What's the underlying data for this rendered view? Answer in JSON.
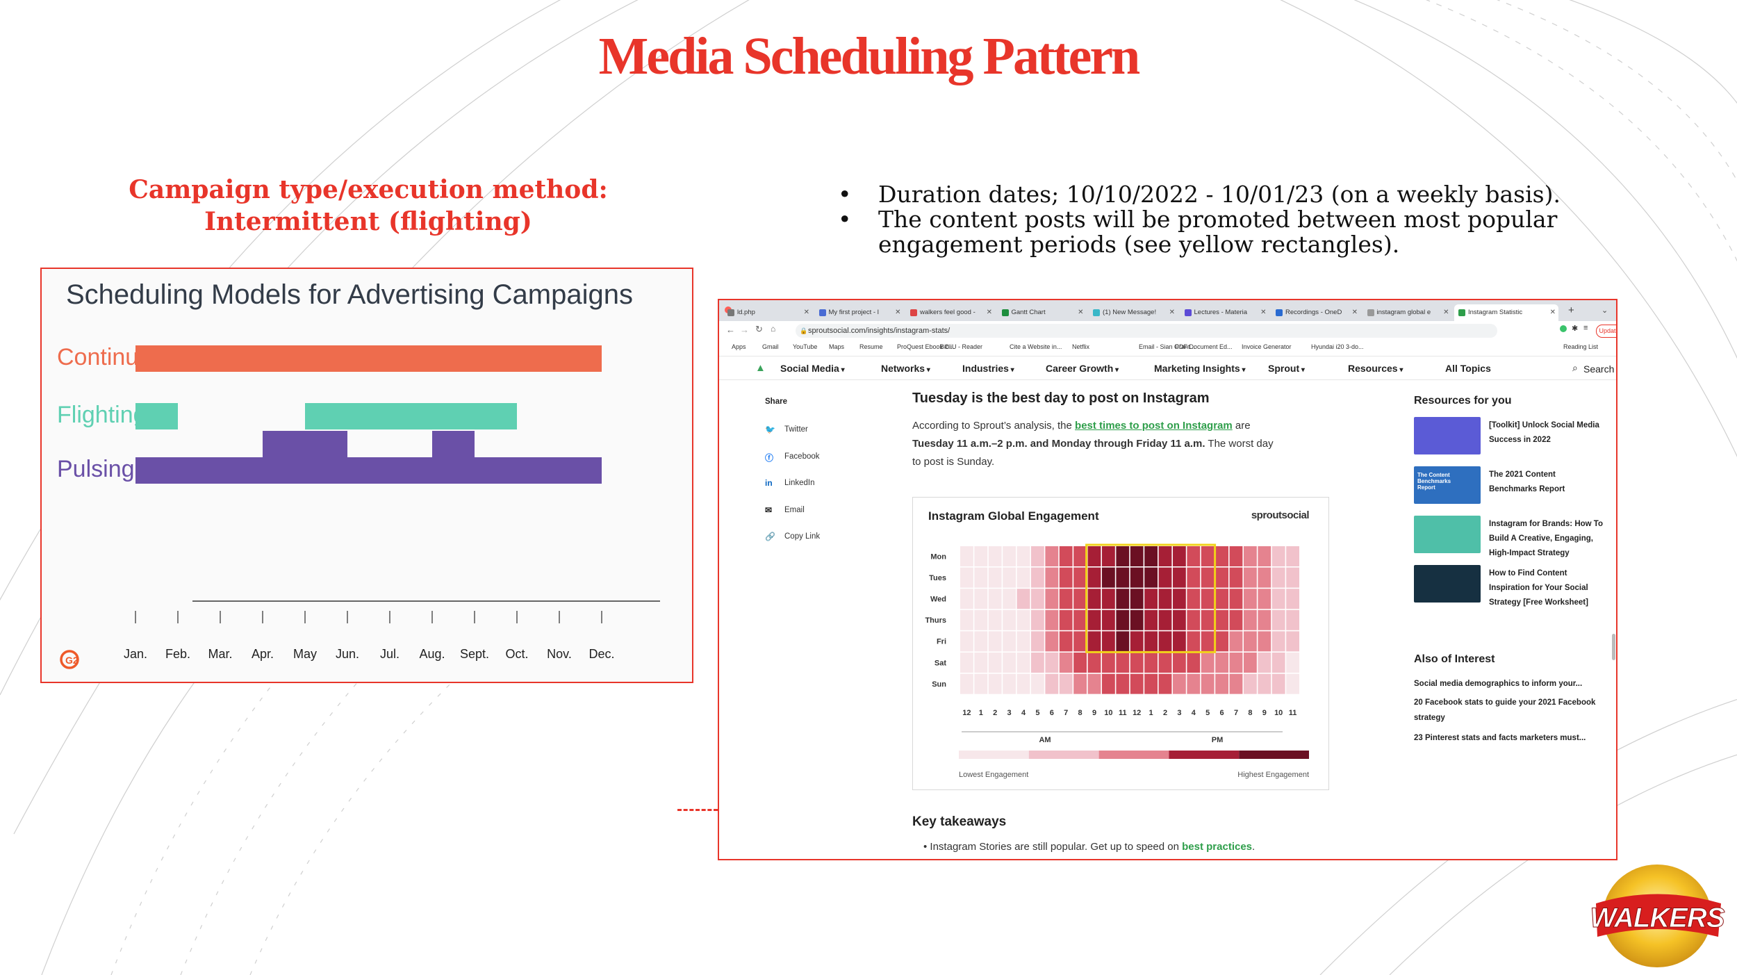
{
  "slide": {
    "title": "Media Scheduling Pattern",
    "subtitle_line1": "Campaign type/execution method:",
    "subtitle_line2": "Intermittent (flighting)",
    "bullets": [
      "Duration dates; 10/10/2022 - 10/01/23 (on a weekly basis).",
      "The content posts will be promoted between most popular engagement periods (see yellow rectangles)."
    ],
    "brand_logo_text": "WALKERS",
    "colors": {
      "title": "#e8352a",
      "border": "#e8352a"
    }
  },
  "scheduling_chart": {
    "title": "Scheduling Models for Advertising Campaigns",
    "logo_text": "G2",
    "months": [
      "Jan.",
      "Feb.",
      "Mar.",
      "Apr.",
      "May",
      "Jun.",
      "Jul.",
      "Aug.",
      "Sept.",
      "Oct.",
      "Nov.",
      "Dec."
    ],
    "rows": [
      {
        "label": "Continuity",
        "color": "#ee6c4d",
        "segments": [
          [
            0,
            11
          ]
        ],
        "pulses": []
      },
      {
        "label": "Flighting",
        "color": "#5fd0b2",
        "segments": [
          [
            0,
            1
          ],
          [
            4,
            9
          ]
        ],
        "pulses": []
      },
      {
        "label": "Pulsing",
        "color": "#6a50a7",
        "segments": [
          [
            0,
            11
          ]
        ],
        "pulses": [
          [
            3,
            5
          ],
          [
            7,
            8
          ]
        ]
      }
    ]
  },
  "browser": {
    "tabs": [
      {
        "label": "ld.php",
        "color": "#777777",
        "active": false
      },
      {
        "label": "My first project - l",
        "color": "#4a6cd4",
        "active": false
      },
      {
        "label": "walkers feel good -",
        "color": "#d44",
        "active": false
      },
      {
        "label": "Gantt Chart",
        "color": "#1e8e3e",
        "active": false
      },
      {
        "label": "(1) New Message!",
        "color": "#3ab7c8",
        "active": false
      },
      {
        "label": "Lectures - Materia",
        "color": "#5c4bd6",
        "active": false
      },
      {
        "label": "Recordings - OneD",
        "color": "#2a6bd1",
        "active": false
      },
      {
        "label": "instagram global e",
        "color": "#999999",
        "active": false
      },
      {
        "label": "Instagram Statistic",
        "color": "#2e9e4a",
        "active": true
      }
    ],
    "url": "sproutsocial.com/insights/instagram-stats/",
    "update_label": "Update",
    "bookmarks": [
      "Apps",
      "Gmail",
      "YouTube",
      "Maps",
      "Resume",
      "ProQuest Ebook C...",
      "BibliU - Reader",
      "Cite a Website in...",
      "Netflix",
      "Email - Sian Grant...",
      "PDF Document Ed...",
      "Invoice Generator",
      "Hyundai i20 3-do...",
      "Reading List"
    ],
    "nav": [
      "Social Media",
      "Networks",
      "Industries",
      "Career Growth",
      "Marketing Insights",
      "Sprout",
      "Resources",
      "All Topics"
    ],
    "search_label": "Search",
    "share_title": "Share",
    "share_items": [
      "Twitter",
      "Facebook",
      "LinkedIn",
      "Email",
      "Copy Link"
    ],
    "article": {
      "heading": "Tuesday is the best day to post on Instagram",
      "p1_a": "According to Sprout’s analysis, the ",
      "p1_link": "best times to post on Instagram",
      "p1_b": " are",
      "p2_bold": "Tuesday 11 a.m.–2 p.m. and Monday through Friday 11 a.m.",
      "p2_rest": " The worst day",
      "p3": "to post is Sunday.",
      "key_takeaways": "Key takeaways",
      "kt_a": "Instagram Stories are still popular. Get up to speed on ",
      "kt_link": "best practices",
      "kt_b": "."
    },
    "heatmap": {
      "title": "Instagram Global Engagement",
      "brand": "sproutsocial",
      "days": [
        "Mon",
        "Tues",
        "Wed",
        "Thurs",
        "Fri",
        "Sat",
        "Sun"
      ],
      "hours": [
        "12",
        "1",
        "2",
        "3",
        "4",
        "5",
        "6",
        "7",
        "8",
        "9",
        "10",
        "11",
        "12",
        "1",
        "2",
        "3",
        "4",
        "5",
        "6",
        "7",
        "8",
        "9",
        "10",
        "11"
      ],
      "am_label": "AM",
      "pm_label": "PM",
      "legend_low": "Lowest Engagement",
      "legend_high": "Highest Engagement",
      "levels": [
        [
          0,
          0,
          0,
          0,
          0,
          1,
          2,
          3,
          3,
          4,
          4,
          5,
          5,
          5,
          4,
          4,
          3,
          3,
          3,
          3,
          2,
          2,
          1,
          1
        ],
        [
          0,
          0,
          0,
          0,
          0,
          1,
          2,
          3,
          3,
          4,
          5,
          5,
          5,
          5,
          4,
          4,
          3,
          3,
          3,
          3,
          2,
          2,
          1,
          1
        ],
        [
          0,
          0,
          0,
          0,
          1,
          1,
          2,
          3,
          3,
          4,
          4,
          5,
          5,
          4,
          4,
          4,
          3,
          3,
          3,
          3,
          2,
          2,
          1,
          1
        ],
        [
          0,
          0,
          0,
          0,
          0,
          1,
          2,
          3,
          3,
          4,
          4,
          5,
          5,
          4,
          4,
          4,
          3,
          3,
          3,
          3,
          2,
          2,
          1,
          1
        ],
        [
          0,
          0,
          0,
          0,
          0,
          1,
          2,
          3,
          3,
          4,
          4,
          5,
          4,
          4,
          4,
          4,
          3,
          3,
          3,
          2,
          2,
          2,
          1,
          1
        ],
        [
          0,
          0,
          0,
          0,
          0,
          1,
          1,
          2,
          3,
          3,
          3,
          3,
          3,
          3,
          3,
          3,
          3,
          2,
          2,
          2,
          2,
          1,
          1,
          0
        ],
        [
          0,
          0,
          0,
          0,
          0,
          0,
          1,
          1,
          2,
          2,
          3,
          3,
          3,
          3,
          3,
          2,
          2,
          2,
          2,
          2,
          1,
          1,
          1,
          0
        ]
      ],
      "highlight": {
        "day_start": 0,
        "day_end": 4,
        "hour_start": 9,
        "hour_end": 17
      },
      "highlight_color": "#f1d21a",
      "palette": [
        "#f7e7ea",
        "#f1c2cb",
        "#e5838f",
        "#d24b5a",
        "#a61f36",
        "#6b1023"
      ]
    },
    "resources": {
      "title": "Resources for you",
      "items": [
        {
          "line1": "[Toolkit] Unlock Social Media",
          "line2": "Success in 2022",
          "line3": "",
          "thumb": "#5b5bd6"
        },
        {
          "line1": "The 2021 Content",
          "line2": "Benchmarks Report",
          "line3": "",
          "thumb": "#2e6fbf",
          "thumb_text": "The Content Benchmarks Report"
        },
        {
          "line1": "Instagram for Brands: How To",
          "line2": "Build A Creative, Engaging,",
          "line3": "High-Impact Strategy",
          "thumb": "#4fbfa8"
        },
        {
          "line1": "How to Find Content",
          "line2": "Inspiration for Your Social",
          "line3": "Strategy [Free Worksheet]",
          "thumb": "#163041"
        }
      ],
      "also_title": "Also of Interest",
      "also_items": [
        "Social media demographics to inform your...",
        "20 Facebook stats to guide your 2021 Facebook",
        "strategy",
        "23 Pinterest stats and facts marketers must..."
      ]
    }
  }
}
